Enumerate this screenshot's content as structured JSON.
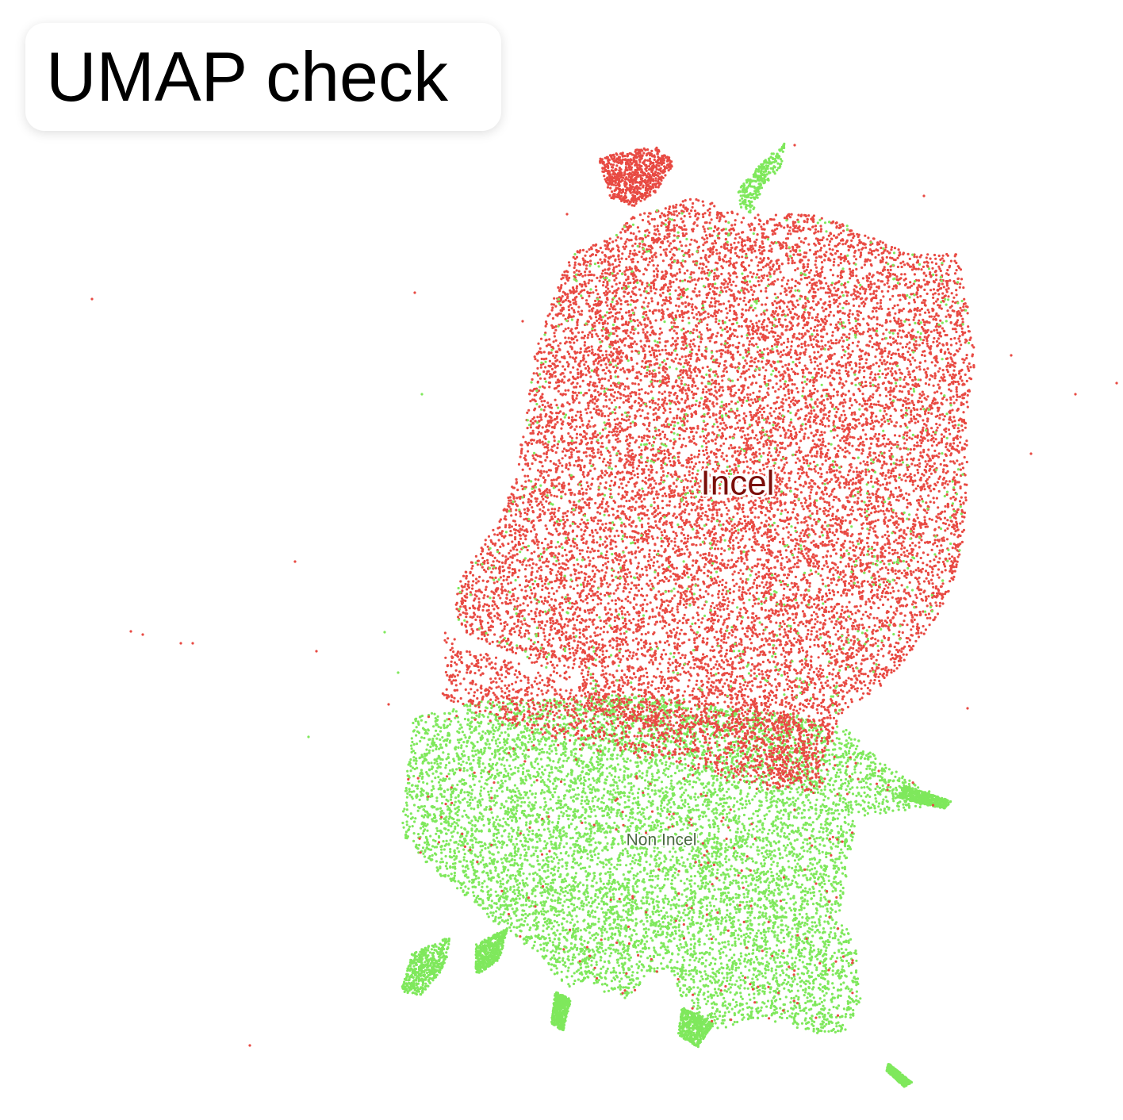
{
  "header": {
    "title": "UMAP check"
  },
  "chart_data": {
    "type": "scatter",
    "title": "UMAP check",
    "xlabel": "",
    "ylabel": "",
    "grid": false,
    "series": [
      {
        "name": "Incel",
        "color": "#e84a43",
        "label_color": "#7a0f0a"
      },
      {
        "name": "Non Incel",
        "color": "#7fe85c",
        "label_color": "#4a6b40"
      }
    ],
    "annotations": [
      "Incel",
      "Non Incel"
    ]
  }
}
